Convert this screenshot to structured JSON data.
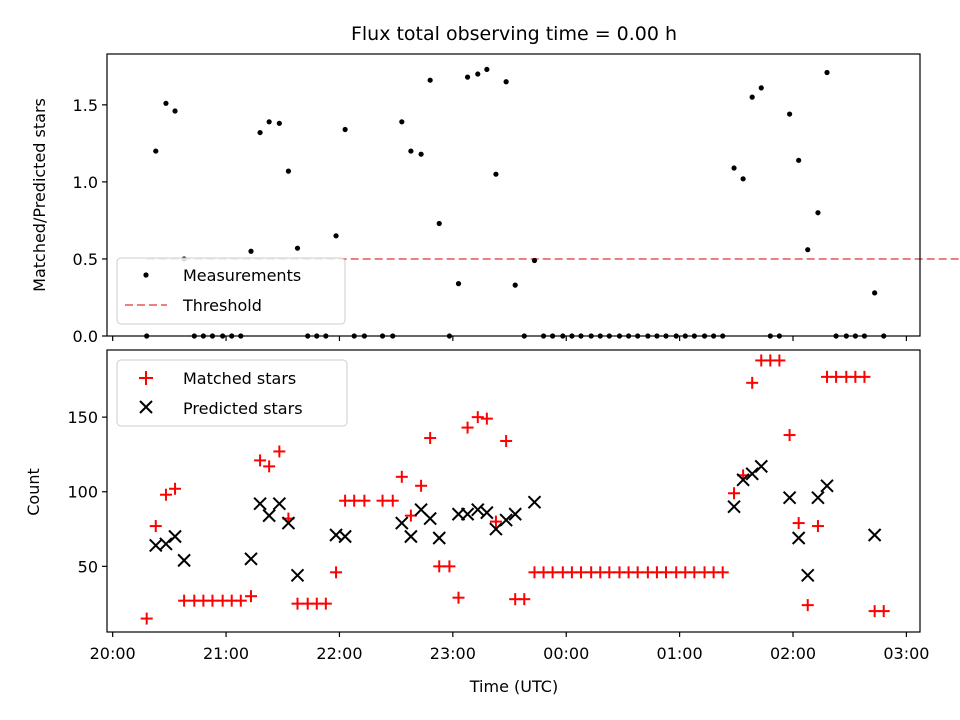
{
  "chart_data": [
    {
      "type": "scatter",
      "title": "Flux total observing time = 0.00 h",
      "xlabel": "",
      "ylabel": "Matched/Predicted stars",
      "ylim": [
        0,
        1.83
      ],
      "yticks": [
        "0.0",
        "0.5",
        "1.0",
        "1.5"
      ],
      "legend": "lower-left",
      "grid": false,
      "threshold": {
        "name": "Threshold",
        "y": 0.5,
        "x_start": 20.3,
        "x_end": 27.8,
        "color": "#f08080"
      },
      "series": [
        {
          "name": "Measurements",
          "color": "#000000",
          "marker": "dot",
          "points": [
            [
              20.3,
              0.0
            ],
            [
              20.38,
              1.2
            ],
            [
              20.47,
              1.51
            ],
            [
              20.55,
              1.46
            ],
            [
              20.63,
              0.5
            ],
            [
              20.72,
              0.0
            ],
            [
              20.8,
              0.0
            ],
            [
              20.88,
              0.0
            ],
            [
              20.97,
              0.0
            ],
            [
              21.05,
              0.0
            ],
            [
              21.13,
              0.0
            ],
            [
              21.22,
              0.55
            ],
            [
              21.3,
              1.32
            ],
            [
              21.38,
              1.39
            ],
            [
              21.47,
              1.38
            ],
            [
              21.55,
              1.07
            ],
            [
              21.63,
              0.57
            ],
            [
              21.72,
              0.0
            ],
            [
              21.8,
              0.0
            ],
            [
              21.88,
              0.0
            ],
            [
              21.97,
              0.65
            ],
            [
              22.05,
              1.34
            ],
            [
              22.13,
              0.0
            ],
            [
              22.22,
              0.0
            ],
            [
              22.38,
              0.0
            ],
            [
              22.47,
              0.0
            ],
            [
              22.55,
              1.39
            ],
            [
              22.63,
              1.2
            ],
            [
              22.72,
              1.18
            ],
            [
              22.8,
              1.66
            ],
            [
              22.88,
              0.73
            ],
            [
              22.97,
              0.0
            ],
            [
              23.05,
              0.34
            ],
            [
              23.13,
              1.68
            ],
            [
              23.22,
              1.7
            ],
            [
              23.3,
              1.73
            ],
            [
              23.38,
              1.05
            ],
            [
              23.47,
              1.65
            ],
            [
              23.55,
              0.33
            ],
            [
              23.63,
              0.0
            ],
            [
              23.72,
              0.49
            ],
            [
              23.8,
              0.0
            ],
            [
              23.88,
              0.0
            ],
            [
              23.97,
              0.0
            ],
            [
              24.05,
              0.0
            ],
            [
              24.13,
              0.0
            ],
            [
              24.22,
              0.0
            ],
            [
              24.3,
              0.0
            ],
            [
              24.38,
              0.0
            ],
            [
              24.47,
              0.0
            ],
            [
              24.55,
              0.0
            ],
            [
              24.63,
              0.0
            ],
            [
              24.72,
              0.0
            ],
            [
              24.8,
              0.0
            ],
            [
              24.88,
              0.0
            ],
            [
              24.97,
              0.0
            ],
            [
              25.05,
              0.0
            ],
            [
              25.13,
              0.0
            ],
            [
              25.22,
              0.0
            ],
            [
              25.3,
              0.0
            ],
            [
              25.38,
              0.0
            ],
            [
              25.48,
              1.09
            ],
            [
              25.56,
              1.02
            ],
            [
              25.64,
              1.55
            ],
            [
              25.72,
              1.61
            ],
            [
              25.8,
              0.0
            ],
            [
              25.88,
              0.0
            ],
            [
              25.97,
              1.44
            ],
            [
              26.05,
              1.14
            ],
            [
              26.13,
              0.56
            ],
            [
              26.22,
              0.8
            ],
            [
              26.3,
              1.71
            ],
            [
              26.38,
              0.0
            ],
            [
              26.47,
              0.0
            ],
            [
              26.55,
              0.0
            ],
            [
              26.63,
              0.0
            ],
            [
              26.72,
              0.28
            ],
            [
              26.8,
              0.0
            ]
          ]
        }
      ]
    },
    {
      "type": "scatter",
      "title": "",
      "xlabel": "Time (UTC)",
      "ylabel": "Count",
      "xlim": [
        19.95,
        27.12
      ],
      "ylim": [
        6,
        195
      ],
      "yticks": [
        "50",
        "100",
        "150"
      ],
      "xtick_labels": [
        "20:00",
        "21:00",
        "22:00",
        "23:00",
        "00:00",
        "01:00",
        "02:00",
        "03:00"
      ],
      "xtick_values": [
        20,
        21,
        22,
        23,
        24,
        25,
        26,
        27
      ],
      "legend": "upper-left",
      "grid": false,
      "series": [
        {
          "name": "Matched stars",
          "color": "#ff0000",
          "marker": "plus",
          "points": [
            [
              20.3,
              15
            ],
            [
              20.38,
              77
            ],
            [
              20.47,
              98
            ],
            [
              20.55,
              102
            ],
            [
              20.63,
              27
            ],
            [
              20.72,
              27
            ],
            [
              20.8,
              27
            ],
            [
              20.88,
              27
            ],
            [
              20.97,
              27
            ],
            [
              21.05,
              27
            ],
            [
              21.13,
              27
            ],
            [
              21.22,
              30
            ],
            [
              21.3,
              121
            ],
            [
              21.38,
              117
            ],
            [
              21.47,
              127
            ],
            [
              21.55,
              82
            ],
            [
              21.63,
              25
            ],
            [
              21.72,
              25
            ],
            [
              21.8,
              25
            ],
            [
              21.88,
              25
            ],
            [
              21.97,
              46
            ],
            [
              22.05,
              94
            ],
            [
              22.13,
              94
            ],
            [
              22.22,
              94
            ],
            [
              22.38,
              94
            ],
            [
              22.47,
              94
            ],
            [
              22.55,
              110
            ],
            [
              22.63,
              84
            ],
            [
              22.72,
              104
            ],
            [
              22.8,
              136
            ],
            [
              22.88,
              50
            ],
            [
              22.97,
              50
            ],
            [
              23.05,
              29
            ],
            [
              23.13,
              143
            ],
            [
              23.22,
              150
            ],
            [
              23.3,
              149
            ],
            [
              23.38,
              80
            ],
            [
              23.47,
              134
            ],
            [
              23.55,
              28
            ],
            [
              23.63,
              28
            ],
            [
              23.72,
              46
            ],
            [
              23.8,
              46
            ],
            [
              23.88,
              46
            ],
            [
              23.97,
              46
            ],
            [
              24.05,
              46
            ],
            [
              24.13,
              46
            ],
            [
              24.22,
              46
            ],
            [
              24.3,
              46
            ],
            [
              24.38,
              46
            ],
            [
              24.47,
              46
            ],
            [
              24.55,
              46
            ],
            [
              24.63,
              46
            ],
            [
              24.72,
              46
            ],
            [
              24.8,
              46
            ],
            [
              24.88,
              46
            ],
            [
              24.97,
              46
            ],
            [
              25.05,
              46
            ],
            [
              25.13,
              46
            ],
            [
              25.22,
              46
            ],
            [
              25.3,
              46
            ],
            [
              25.38,
              46
            ],
            [
              25.48,
              99
            ],
            [
              25.56,
              111
            ],
            [
              25.64,
              173
            ],
            [
              25.72,
              188
            ],
            [
              25.8,
              188
            ],
            [
              25.88,
              188
            ],
            [
              25.97,
              138
            ],
            [
              26.05,
              79
            ],
            [
              26.13,
              24
            ],
            [
              26.22,
              77
            ],
            [
              26.3,
              177
            ],
            [
              26.38,
              177
            ],
            [
              26.47,
              177
            ],
            [
              26.55,
              177
            ],
            [
              26.63,
              177
            ],
            [
              26.72,
              20
            ],
            [
              26.8,
              20
            ]
          ]
        },
        {
          "name": "Predicted stars",
          "color": "#000000",
          "marker": "x",
          "points": [
            [
              20.38,
              64
            ],
            [
              20.47,
              65
            ],
            [
              20.55,
              70
            ],
            [
              20.63,
              54
            ],
            [
              21.22,
              55
            ],
            [
              21.3,
              92
            ],
            [
              21.38,
              84
            ],
            [
              21.47,
              92
            ],
            [
              21.55,
              79
            ],
            [
              21.63,
              44
            ],
            [
              21.97,
              71
            ],
            [
              22.05,
              70
            ],
            [
              22.55,
              79
            ],
            [
              22.63,
              70
            ],
            [
              22.72,
              88
            ],
            [
              22.8,
              82
            ],
            [
              22.88,
              69
            ],
            [
              23.05,
              85
            ],
            [
              23.13,
              85
            ],
            [
              23.22,
              88
            ],
            [
              23.3,
              86
            ],
            [
              23.38,
              75
            ],
            [
              23.47,
              81
            ],
            [
              23.55,
              85
            ],
            [
              23.72,
              93
            ],
            [
              25.48,
              90
            ],
            [
              25.56,
              108
            ],
            [
              25.64,
              112
            ],
            [
              25.72,
              117
            ],
            [
              25.97,
              96
            ],
            [
              26.05,
              69
            ],
            [
              26.13,
              44
            ],
            [
              26.22,
              96
            ],
            [
              26.3,
              104
            ],
            [
              26.72,
              71
            ]
          ]
        }
      ]
    }
  ]
}
